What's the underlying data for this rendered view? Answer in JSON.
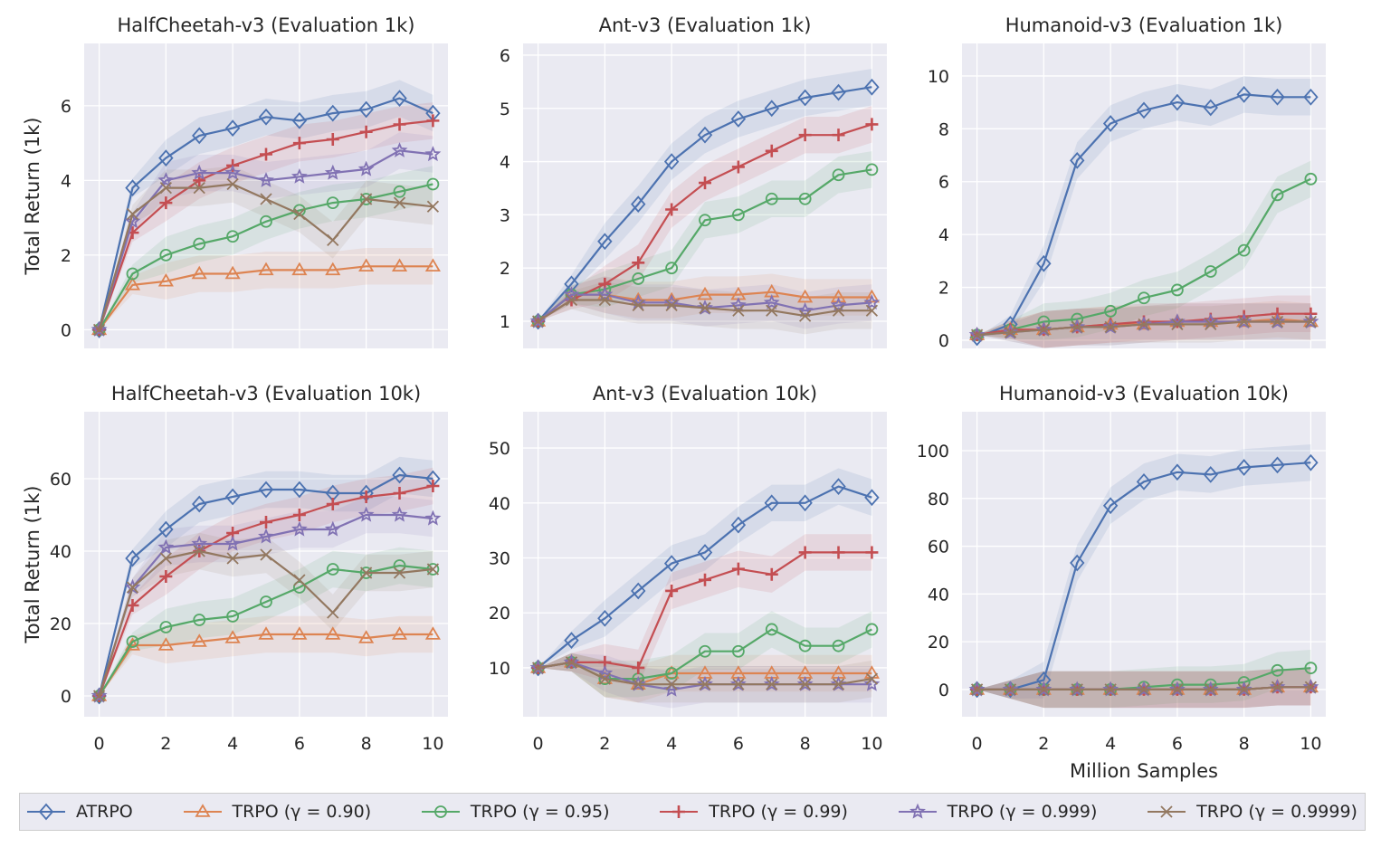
{
  "colors": {
    "ATRPO": "#4c72b0",
    "g090": "#dd8452",
    "g095": "#55a868",
    "g099": "#c44e52",
    "g0999": "#8172b3",
    "g09999": "#937860",
    "axes_bg": "#eaeaf2",
    "grid": "#ffffff"
  },
  "legend": [
    {
      "label": "ATRPO",
      "color": "#4c72b0",
      "marker": "diamond"
    },
    {
      "label": "TRPO (γ = 0.90)",
      "color": "#dd8452",
      "marker": "triangle"
    },
    {
      "label": "TRPO (γ = 0.95)",
      "color": "#55a868",
      "marker": "circle"
    },
    {
      "label": "TRPO (γ = 0.99)",
      "color": "#c44e52",
      "marker": "plus"
    },
    {
      "label": "TRPO (γ = 0.999)",
      "color": "#8172b3",
      "marker": "star"
    },
    {
      "label": "TRPO (γ = 0.9999)",
      "color": "#937860",
      "marker": "x"
    }
  ],
  "chart_data": [
    {
      "type": "line",
      "title": "HalfCheetah-v3 (Evaluation 1k)",
      "ylabel": "Total Return (1k)",
      "xlabel": "",
      "xlim": [
        -0.45,
        10.45
      ],
      "ylim": [
        -0.5,
        7.67
      ],
      "xticks": [
        0,
        2,
        4,
        6,
        8,
        10
      ],
      "yticks": [
        0,
        2,
        4,
        6
      ],
      "show_xticklabels": false,
      "x": [
        0,
        1,
        2,
        3,
        4,
        5,
        6,
        7,
        8,
        9,
        10
      ],
      "series": [
        {
          "name": "ATRPO",
          "values": [
            0,
            3.8,
            4.6,
            5.2,
            5.4,
            5.7,
            5.6,
            5.8,
            5.9,
            6.2,
            5.8
          ]
        },
        {
          "name": "TRPO (γ = 0.90)",
          "values": [
            0,
            1.2,
            1.3,
            1.5,
            1.5,
            1.6,
            1.6,
            1.6,
            1.7,
            1.7,
            1.7
          ]
        },
        {
          "name": "TRPO (γ = 0.95)",
          "values": [
            0,
            1.5,
            2.0,
            2.3,
            2.5,
            2.9,
            3.2,
            3.4,
            3.5,
            3.7,
            3.9
          ]
        },
        {
          "name": "TRPO (γ = 0.99)",
          "values": [
            0,
            2.6,
            3.4,
            4.0,
            4.4,
            4.7,
            5.0,
            5.1,
            5.3,
            5.5,
            5.6
          ]
        },
        {
          "name": "TRPO (γ = 0.999)",
          "values": [
            0,
            2.9,
            4.0,
            4.2,
            4.2,
            4.0,
            4.1,
            4.2,
            4.3,
            4.8,
            4.7
          ]
        },
        {
          "name": "TRPO (γ = 0.9999)",
          "values": [
            0,
            3.1,
            3.8,
            3.8,
            3.9,
            3.5,
            3.1,
            2.4,
            3.5,
            3.4,
            3.3
          ]
        }
      ]
    },
    {
      "type": "line",
      "title": "Ant-v3 (Evaluation 1k)",
      "ylabel": "",
      "xlabel": "",
      "xlim": [
        -0.45,
        10.45
      ],
      "ylim": [
        0.49,
        6.22
      ],
      "xticks": [
        0,
        2,
        4,
        6,
        8,
        10
      ],
      "yticks": [
        1,
        2,
        3,
        4,
        5,
        6
      ],
      "show_xticklabels": false,
      "x": [
        0,
        1,
        2,
        3,
        4,
        5,
        6,
        7,
        8,
        9,
        10
      ],
      "series": [
        {
          "name": "ATRPO",
          "values": [
            1,
            1.7,
            2.5,
            3.2,
            4.0,
            4.5,
            4.8,
            5.0,
            5.2,
            5.3,
            5.4
          ]
        },
        {
          "name": "TRPO (γ = 0.90)",
          "values": [
            1,
            1.5,
            1.5,
            1.4,
            1.4,
            1.5,
            1.5,
            1.55,
            1.45,
            1.45,
            1.45
          ]
        },
        {
          "name": "TRPO (γ = 0.95)",
          "values": [
            1,
            1.5,
            1.6,
            1.8,
            2.0,
            2.9,
            3.0,
            3.3,
            3.3,
            3.75,
            3.85
          ]
        },
        {
          "name": "TRPO (γ = 0.99)",
          "values": [
            1,
            1.4,
            1.7,
            2.1,
            3.1,
            3.6,
            3.9,
            4.2,
            4.5,
            4.5,
            4.7
          ]
        },
        {
          "name": "TRPO (γ = 0.999)",
          "values": [
            1,
            1.5,
            1.5,
            1.35,
            1.35,
            1.25,
            1.3,
            1.35,
            1.2,
            1.3,
            1.35
          ]
        },
        {
          "name": "TRPO (γ = 0.9999)",
          "values": [
            1,
            1.4,
            1.4,
            1.3,
            1.3,
            1.25,
            1.2,
            1.2,
            1.1,
            1.2,
            1.2
          ]
        }
      ]
    },
    {
      "type": "line",
      "title": "Humanoid-v3 (Evaluation 1k)",
      "ylabel": "",
      "xlabel": "",
      "xlim": [
        -0.45,
        10.45
      ],
      "ylim": [
        -0.31,
        11.23
      ],
      "xticks": [
        0,
        2,
        4,
        6,
        8,
        10
      ],
      "yticks": [
        0,
        2,
        4,
        6,
        8,
        10
      ],
      "show_xticklabels": false,
      "x": [
        0,
        1,
        2,
        3,
        4,
        5,
        6,
        7,
        8,
        9,
        10
      ],
      "series": [
        {
          "name": "ATRPO",
          "values": [
            0.1,
            0.6,
            2.9,
            6.8,
            8.2,
            8.7,
            9.0,
            8.8,
            9.3,
            9.2,
            9.2
          ]
        },
        {
          "name": "TRPO (γ = 0.90)",
          "values": [
            0.2,
            0.4,
            0.4,
            0.5,
            0.6,
            0.6,
            0.7,
            0.7,
            0.7,
            0.8,
            0.7
          ]
        },
        {
          "name": "TRPO (γ = 0.95)",
          "values": [
            0.2,
            0.4,
            0.7,
            0.8,
            1.1,
            1.6,
            1.9,
            2.6,
            3.4,
            5.5,
            6.1
          ]
        },
        {
          "name": "TRPO (γ = 0.99)",
          "values": [
            0.2,
            0.4,
            0.4,
            0.5,
            0.6,
            0.7,
            0.7,
            0.8,
            0.9,
            1.0,
            1.0
          ]
        },
        {
          "name": "TRPO (γ = 0.999)",
          "values": [
            0.2,
            0.3,
            0.4,
            0.5,
            0.5,
            0.6,
            0.7,
            0.7,
            0.7,
            0.7,
            0.7
          ]
        },
        {
          "name": "TRPO (γ = 0.9999)",
          "values": [
            0.2,
            0.3,
            0.4,
            0.5,
            0.5,
            0.6,
            0.6,
            0.6,
            0.7,
            0.7,
            0.7
          ]
        }
      ]
    },
    {
      "type": "line",
      "title": "HalfCheetah-v3 (Evaluation 10k)",
      "ylabel": "Total Return (1k)",
      "xlabel": "",
      "xlim": [
        -0.45,
        10.45
      ],
      "ylim": [
        -5.75,
        78.5
      ],
      "xticks": [
        0,
        2,
        4,
        6,
        8,
        10
      ],
      "yticks": [
        0,
        20,
        40,
        60
      ],
      "show_xticklabels": true,
      "x": [
        0,
        1,
        2,
        3,
        4,
        5,
        6,
        7,
        8,
        9,
        10
      ],
      "series": [
        {
          "name": "ATRPO",
          "values": [
            0,
            38,
            46,
            53,
            55,
            57,
            57,
            56,
            56,
            61,
            60
          ]
        },
        {
          "name": "TRPO (γ = 0.90)",
          "values": [
            0,
            14,
            14,
            15,
            16,
            17,
            17,
            17,
            16,
            17,
            17
          ]
        },
        {
          "name": "TRPO (γ = 0.95)",
          "values": [
            0,
            15,
            19,
            21,
            22,
            26,
            30,
            35,
            34,
            36,
            35
          ]
        },
        {
          "name": "TRPO (γ = 0.99)",
          "values": [
            0,
            25,
            33,
            40,
            45,
            48,
            50,
            53,
            55,
            56,
            58
          ]
        },
        {
          "name": "TRPO (γ = 0.999)",
          "values": [
            0,
            30,
            41,
            42,
            42,
            44,
            46,
            46,
            50,
            50,
            49
          ]
        },
        {
          "name": "TRPO (γ = 0.9999)",
          "values": [
            0,
            30,
            38,
            40,
            38,
            39,
            32,
            23,
            34,
            34,
            35
          ]
        }
      ]
    },
    {
      "type": "line",
      "title": "Ant-v3 (Evaluation 10k)",
      "ylabel": "",
      "xlabel": "",
      "xlim": [
        -0.45,
        10.45
      ],
      "ylim": [
        1.1,
        56.6
      ],
      "xticks": [
        0,
        2,
        4,
        6,
        8,
        10
      ],
      "yticks": [
        10,
        20,
        30,
        40,
        50
      ],
      "show_xticklabels": true,
      "x": [
        0,
        1,
        2,
        3,
        4,
        5,
        6,
        7,
        8,
        9,
        10
      ],
      "series": [
        {
          "name": "ATRPO",
          "values": [
            10,
            15,
            19,
            24,
            29,
            31,
            36,
            40,
            40,
            43,
            41
          ]
        },
        {
          "name": "TRPO (γ = 0.90)",
          "values": [
            10,
            11,
            8,
            7,
            9,
            9,
            9,
            9,
            9,
            9,
            9
          ]
        },
        {
          "name": "TRPO (γ = 0.95)",
          "values": [
            10,
            11,
            8,
            8,
            9,
            13,
            13,
            17,
            14,
            14,
            17
          ]
        },
        {
          "name": "TRPO (γ = 0.99)",
          "values": [
            10,
            11,
            11,
            10,
            24,
            26,
            28,
            27,
            31,
            31,
            31
          ]
        },
        {
          "name": "TRPO (γ = 0.999)",
          "values": [
            10,
            11,
            9,
            7,
            6,
            7,
            7,
            7,
            7,
            7,
            7
          ]
        },
        {
          "name": "TRPO (γ = 0.9999)",
          "values": [
            10,
            11,
            8,
            7,
            7,
            7,
            7,
            7,
            7,
            7,
            8
          ]
        }
      ]
    },
    {
      "type": "line",
      "title": "Humanoid-v3 (Evaluation 10k)",
      "ylabel": "",
      "xlabel": "Million Samples",
      "xlim": [
        -0.45,
        10.45
      ],
      "ylim": [
        -11.4,
        116.3
      ],
      "xticks": [
        0,
        2,
        4,
        6,
        8,
        10
      ],
      "yticks": [
        0,
        20,
        40,
        60,
        80,
        100
      ],
      "show_xticklabels": true,
      "x": [
        0,
        1,
        2,
        3,
        4,
        5,
        6,
        7,
        8,
        9,
        10
      ],
      "series": [
        {
          "name": "ATRPO",
          "values": [
            0,
            0,
            4,
            53,
            77,
            87,
            91,
            90,
            93,
            94,
            95
          ]
        },
        {
          "name": "TRPO (γ = 0.90)",
          "values": [
            0,
            0,
            0,
            0,
            0,
            0,
            0,
            0,
            0,
            1,
            1
          ]
        },
        {
          "name": "TRPO (γ = 0.95)",
          "values": [
            0,
            0,
            0,
            0,
            0,
            1,
            2,
            2,
            3,
            8,
            9
          ]
        },
        {
          "name": "TRPO (γ = 0.99)",
          "values": [
            0,
            0,
            0,
            0,
            0,
            0,
            0,
            0,
            0,
            1,
            1
          ]
        },
        {
          "name": "TRPO (γ = 0.999)",
          "values": [
            0,
            0,
            0,
            0,
            0,
            0,
            0,
            0,
            0,
            1,
            1
          ]
        },
        {
          "name": "TRPO (γ = 0.9999)",
          "values": [
            0,
            0,
            0,
            0,
            0,
            0,
            0,
            0,
            0,
            1,
            1
          ]
        }
      ]
    }
  ]
}
